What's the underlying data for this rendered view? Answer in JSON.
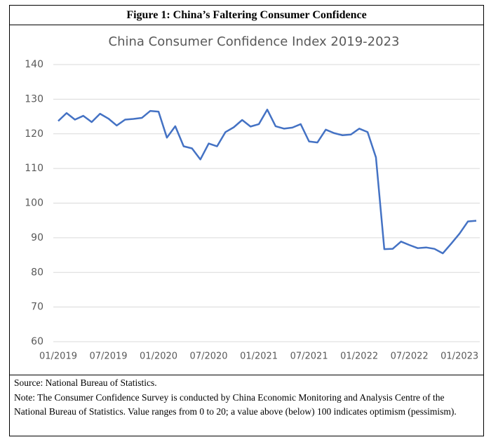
{
  "figure": {
    "title": "Figure 1: China’s Faltering Consumer Confidence",
    "source": "Source: National Bureau of Statistics.",
    "note": "Note: The Consumer Confidence Survey is conducted by China Economic Monitoring and Analysis Centre of the National Bureau of Statistics. Value ranges from 0 to 20; a value above (below) 100 indicates optimism (pessimism)."
  },
  "chart_data": {
    "type": "line",
    "title": "China Consumer Confidence Index 2019-2023",
    "categories": [
      "01/2019",
      null,
      null,
      null,
      null,
      null,
      "07/2019",
      null,
      null,
      null,
      null,
      null,
      "01/2020",
      null,
      null,
      null,
      null,
      null,
      "07/2020",
      null,
      null,
      null,
      null,
      null,
      "01/2021",
      null,
      null,
      null,
      null,
      null,
      "07/2021",
      null,
      null,
      null,
      null,
      null,
      "01/2022",
      null,
      null,
      null,
      null,
      null,
      "07/2022",
      null,
      null,
      null,
      null,
      null,
      "01/2023",
      null,
      null
    ],
    "values": [
      123.7,
      126.0,
      124.1,
      125.2,
      123.4,
      125.8,
      124.4,
      122.4,
      124.1,
      124.3,
      124.6,
      126.6,
      126.4,
      118.9,
      122.2,
      116.4,
      115.8,
      112.6,
      117.2,
      116.4,
      120.5,
      121.9,
      124.0,
      122.1,
      122.8,
      127.0,
      122.2,
      121.5,
      121.8,
      122.8,
      117.8,
      117.5,
      121.2,
      120.2,
      119.6,
      119.8,
      121.5,
      120.5,
      113.2,
      86.7,
      86.8,
      88.9,
      87.9,
      87.0,
      87.2,
      86.8,
      85.5,
      88.3,
      91.2,
      94.7,
      94.9
    ],
    "color": "#4472c4",
    "ylim": [
      60,
      140
    ],
    "yticks": [
      60,
      70,
      80,
      90,
      100,
      110,
      120,
      130,
      140
    ],
    "grid": true
  }
}
